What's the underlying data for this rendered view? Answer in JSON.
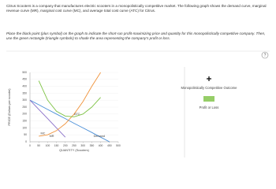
{
  "intro": "Citrus Scooters is a company that manufactures electric scooters in a monopolistically competitive market. The following graph shows the demand curve, marginal revenue curve (MR), marginal cost curve (MC), and average total cost curve (ATC) for Citrus.",
  "instructions": "Place the black point (plus symbol) on the graph to indicate the short-run profit-maximizing price and quantity for this monopolistically competitive company. Then, use the green rectangle (triangle symbols) to shade the area representing the company's profit or loss.",
  "tools": [
    "Monopolistically Competitive Outcome",
    "Profit or Loss"
  ],
  "help": "?",
  "chart_data": {
    "type": "line",
    "xlabel": "QUANTITY (Scooters)",
    "ylabel": "PRICE (Dollars per scooter)",
    "x": [
      0,
      50,
      100,
      150,
      200,
      250,
      300,
      350,
      400,
      450
    ],
    "series": [
      {
        "name": "Demand",
        "color": "#4a8fd8",
        "values": [
          300,
          267,
          233,
          200,
          167,
          133,
          100,
          67,
          33,
          0
        ]
      },
      {
        "name": "MR",
        "color": "#8a6fc9",
        "values": [
          300,
          233,
          167,
          100,
          33,
          null,
          null,
          null,
          null,
          null
        ]
      },
      {
        "name": "MC",
        "color": "#f0923a",
        "values": [
          null,
          40,
          50,
          80,
          130,
          200,
          290,
          400,
          500,
          null
        ]
      },
      {
        "name": "ATC",
        "color": "#7cc242",
        "values": [
          null,
          440,
          300,
          220,
          185,
          180,
          200,
          250,
          320,
          null
        ]
      }
    ],
    "xlim": [
      0,
      500
    ],
    "xticks": [
      0,
      50,
      100,
      150,
      200,
      250,
      300,
      350,
      400,
      450,
      500
    ],
    "ylim": [
      0,
      500
    ],
    "yticks": [
      0,
      50,
      100,
      150,
      200,
      250,
      300,
      350,
      400,
      450,
      500
    ]
  }
}
